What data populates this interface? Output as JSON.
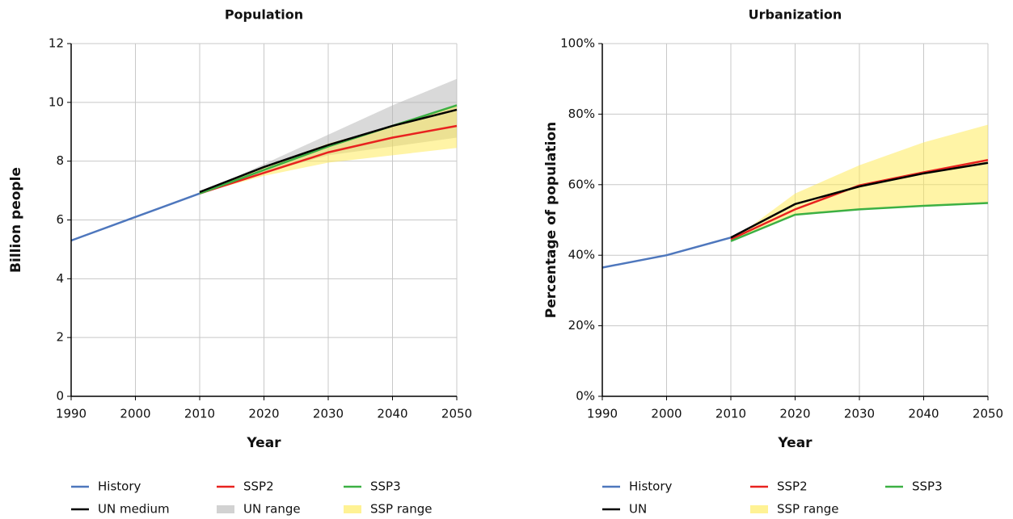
{
  "chart_data": [
    {
      "type": "line",
      "title": "Population",
      "x_label": "Year",
      "y_label": "Billion people",
      "x": [
        1990,
        2000,
        2010,
        2020,
        2030,
        2040,
        2050
      ],
      "xlim": [
        1990,
        2050
      ],
      "xticks": [
        1990,
        2000,
        2010,
        2020,
        2030,
        2040,
        2050
      ],
      "ylim": [
        0,
        12
      ],
      "yticks": [
        0,
        2,
        4,
        6,
        8,
        10,
        12
      ],
      "grid": true,
      "series": [
        {
          "name": "History",
          "style": "line",
          "color": "#4e77bd",
          "values": [
            5.3,
            6.1,
            6.9,
            null,
            null,
            null,
            null
          ]
        },
        {
          "name": "SSP2",
          "style": "line",
          "color": "#e8221f",
          "values": [
            null,
            null,
            6.9,
            7.6,
            8.3,
            8.8,
            9.2
          ]
        },
        {
          "name": "SSP3",
          "style": "line",
          "color": "#3cb043",
          "values": [
            null,
            null,
            6.9,
            7.7,
            8.5,
            9.2,
            9.9
          ]
        },
        {
          "name": "UN medium",
          "style": "line",
          "color": "#000000",
          "values": [
            null,
            null,
            6.95,
            7.8,
            8.55,
            9.2,
            9.75
          ]
        },
        {
          "name": "UN range",
          "style": "band",
          "color": "#b4b4b4",
          "lower": [
            null,
            null,
            6.9,
            7.6,
            8.2,
            8.5,
            8.8
          ],
          "upper": [
            null,
            null,
            6.9,
            7.9,
            8.9,
            9.9,
            10.8
          ]
        },
        {
          "name": "SSP range",
          "style": "band",
          "color": "#ffe94d",
          "lower": [
            null,
            null,
            6.9,
            7.5,
            7.95,
            8.2,
            8.45
          ],
          "upper": [
            null,
            null,
            6.9,
            7.8,
            8.6,
            9.2,
            9.9
          ]
        }
      ]
    },
    {
      "type": "line",
      "title": "Urbanization",
      "x_label": "Year",
      "y_label": "Percentage of population",
      "x": [
        1990,
        2000,
        2010,
        2020,
        2030,
        2040,
        2050
      ],
      "xlim": [
        1990,
        2050
      ],
      "xticks": [
        1990,
        2000,
        2010,
        2020,
        2030,
        2040,
        2050
      ],
      "ylim": [
        0,
        100
      ],
      "yticks": [
        {
          "value": 0,
          "label": "0%"
        },
        {
          "value": 20,
          "label": "20%"
        },
        {
          "value": 40,
          "label": "40%"
        },
        {
          "value": 60,
          "label": "60%"
        },
        {
          "value": 80,
          "label": "80%"
        },
        {
          "value": 100,
          "label": "100%"
        }
      ],
      "grid": true,
      "series": [
        {
          "name": "History",
          "style": "line",
          "color": "#4e77bd",
          "values": [
            36.5,
            40,
            45,
            null,
            null,
            null,
            null
          ]
        },
        {
          "name": "SSP2",
          "style": "line",
          "color": "#e8221f",
          "values": [
            null,
            null,
            44.5,
            53,
            59.8,
            63.5,
            67
          ]
        },
        {
          "name": "SSP3",
          "style": "line",
          "color": "#3cb043",
          "values": [
            null,
            null,
            44,
            51.5,
            53,
            54,
            54.8
          ]
        },
        {
          "name": "UN",
          "style": "line",
          "color": "#000000",
          "values": [
            null,
            null,
            45,
            54.5,
            59.5,
            63.2,
            66.2
          ]
        },
        {
          "name": "SSP range",
          "style": "band",
          "color": "#ffe94d",
          "lower": [
            null,
            null,
            44,
            51.5,
            53,
            54,
            54.8
          ],
          "upper": [
            null,
            null,
            44,
            57.5,
            65.5,
            72,
            77
          ]
        }
      ]
    }
  ]
}
